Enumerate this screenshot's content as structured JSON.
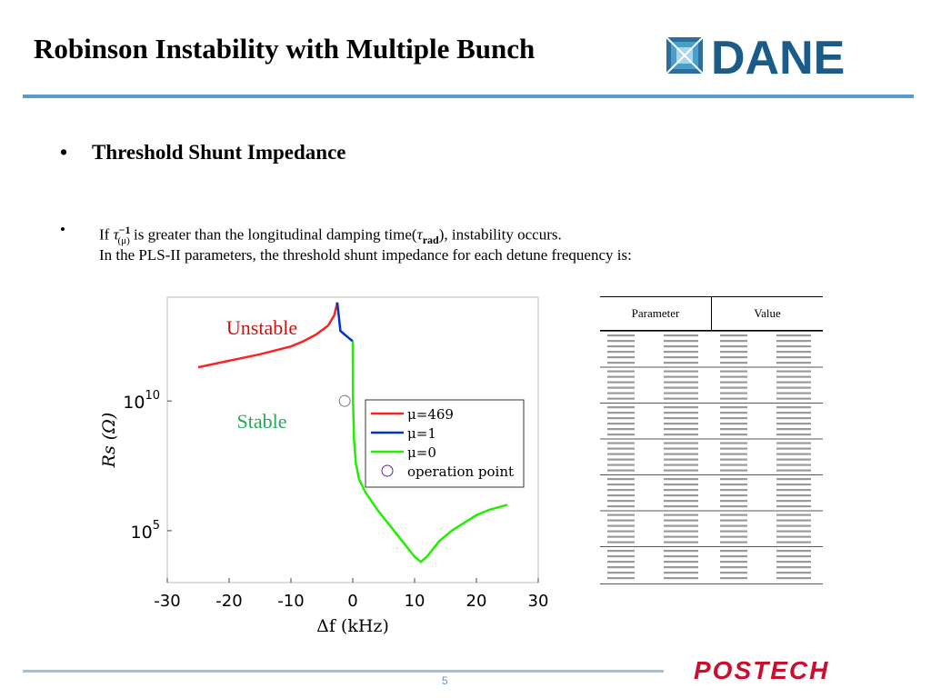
{
  "slide": {
    "title": "Robinson Instability with Multiple Bunch",
    "logo_dane_text": "DANE",
    "logo_postech_text": "POSTECH",
    "page_number": "5",
    "bullet1": "Threshold Shunt Impedance",
    "bullet2_line1_a": "If ",
    "bullet2_line1_tau": "τ",
    "bullet2_line1_sup": "−1",
    "bullet2_line1_sub": "(μ)",
    "bullet2_line1_b": " is greater than the longitudinal damping time(",
    "bullet2_line1_tau2": "τ",
    "bullet2_line1_sub2": "rad",
    "bullet2_line1_c": "), instability occurs.",
    "bullet2_line2": "In the PLS-II parameters, the threshold shunt impedance for each detune frequency is:",
    "bullet_symbol": "•",
    "colors": {
      "accent": "#5b9bc9",
      "dane_blue": "#1a5b8a",
      "postech_red": "#c8102e"
    }
  },
  "table": {
    "headers": [
      "Parameter",
      "Value"
    ]
  },
  "chart_data": {
    "type": "line",
    "xlabel": "Δf (kHz)",
    "ylabel": "Rs (Ω)",
    "xlim": [
      -30,
      30
    ],
    "xticks": [
      "-30",
      "-20",
      "-10",
      "0",
      "10",
      "20",
      "30"
    ],
    "yscale": "log",
    "ylim_exp": [
      3,
      14
    ],
    "ytick_labels": [
      {
        "base": "10",
        "exp": "10",
        "value_exp": 10
      },
      {
        "base": "10",
        "exp": "5",
        "value_exp": 5
      }
    ],
    "annotations": [
      {
        "text": "Unstable",
        "color": "#cc1111"
      },
      {
        "text": "Stable",
        "color": "#22aa55"
      }
    ],
    "series": [
      {
        "name": "μ=469",
        "color": "#ff2020",
        "x": [
          -25,
          -20,
          -15,
          -10,
          -8,
          -6,
          -4,
          -3,
          -2.5
        ],
        "log10_y": [
          11.3,
          11.55,
          11.8,
          12.1,
          12.3,
          12.55,
          12.9,
          13.3,
          13.8
        ]
      },
      {
        "name": "μ=1",
        "color": "#0033cc",
        "x": [
          -2.5,
          -2.0,
          -1.5,
          -1.0,
          -0.5,
          0.0
        ],
        "log10_y": [
          13.8,
          12.7,
          12.6,
          12.5,
          12.4,
          12.3
        ]
      },
      {
        "name": "μ=0",
        "color": "#22ee00",
        "x": [
          0.0,
          0.05,
          0.2,
          0.5,
          1,
          2,
          4,
          6,
          8,
          10,
          11,
          12,
          14,
          16,
          18,
          20,
          22,
          25
        ],
        "log10_y": [
          12.3,
          10.0,
          8.5,
          7.6,
          7.0,
          6.5,
          5.8,
          5.2,
          4.6,
          4.0,
          3.8,
          4.0,
          4.6,
          5.0,
          5.3,
          5.6,
          5.8,
          6.0
        ]
      }
    ],
    "operation_point": {
      "name": "operation point",
      "x": -1.3,
      "log10_y": 10.0,
      "color": "#662288"
    }
  }
}
